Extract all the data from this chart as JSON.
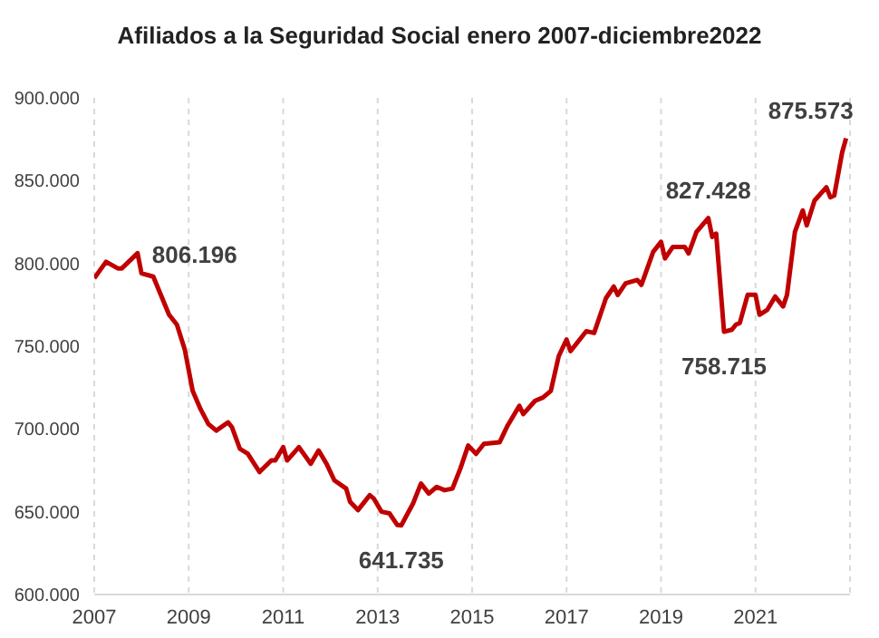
{
  "chart_data": {
    "type": "line",
    "title": "Afiliados a la Seguridad Social enero 2007-diciembre2022",
    "x": [
      "2007-01",
      "2007-04",
      "2007-07",
      "2007-08",
      "2007-12",
      "2008-01",
      "2008-04",
      "2008-08",
      "2008-10",
      "2008-12",
      "2009-02",
      "2009-04",
      "2009-06",
      "2009-08",
      "2009-11",
      "2009-12",
      "2010-02",
      "2010-04",
      "2010-07",
      "2010-10",
      "2010-11",
      "2011-01",
      "2011-02",
      "2011-05",
      "2011-08",
      "2011-10",
      "2011-12",
      "2012-02",
      "2012-05",
      "2012-06",
      "2012-08",
      "2012-11",
      "2012-12",
      "2013-02",
      "2013-04",
      "2013-06",
      "2013-07",
      "2013-10",
      "2013-12",
      "2014-02",
      "2014-04",
      "2014-06",
      "2014-08",
      "2014-10",
      "2014-12",
      "2015-02",
      "2015-04",
      "2015-08",
      "2015-10",
      "2016-01",
      "2016-02",
      "2016-05",
      "2016-07",
      "2016-09",
      "2016-11",
      "2017-01",
      "2017-02",
      "2017-06",
      "2017-08",
      "2017-11",
      "2018-01",
      "2018-02",
      "2018-04",
      "2018-07",
      "2018-08",
      "2018-11",
      "2019-01",
      "2019-02",
      "2019-04",
      "2019-07",
      "2019-08",
      "2019-10",
      "2020-01",
      "2020-02",
      "2020-03",
      "2020-05",
      "2020-07",
      "2020-08",
      "2020-09",
      "2020-11",
      "2021-01",
      "2021-02",
      "2021-04",
      "2021-06",
      "2021-08",
      "2021-09",
      "2021-11",
      "2022-01",
      "2022-02",
      "2022-04",
      "2022-07",
      "2022-08",
      "2022-09",
      "2022-11",
      "2022-12"
    ],
    "series": [
      {
        "color": "#c00000",
        "values": [
          791000,
          801000,
          797000,
          797000,
          806196,
          794000,
          792000,
          769000,
          763000,
          748000,
          723000,
          712000,
          703000,
          699000,
          704000,
          701000,
          688000,
          685000,
          674000,
          681000,
          681000,
          689000,
          681000,
          689000,
          679000,
          687000,
          679000,
          669000,
          664000,
          656000,
          651000,
          660000,
          658000,
          650000,
          649000,
          642000,
          641735,
          655000,
          667000,
          661000,
          665000,
          663000,
          664000,
          676000,
          690000,
          685000,
          691000,
          692000,
          702000,
          714000,
          709000,
          717000,
          719000,
          723000,
          744000,
          754000,
          747000,
          759000,
          758000,
          779000,
          786000,
          781000,
          788000,
          790000,
          787000,
          807000,
          813000,
          803000,
          810000,
          810000,
          806000,
          819000,
          827428,
          816000,
          818000,
          758715,
          760000,
          763000,
          764000,
          781000,
          781000,
          769000,
          772000,
          780000,
          774000,
          781000,
          819000,
          832000,
          823000,
          838000,
          846000,
          840000,
          841000,
          867000,
          875573
        ]
      }
    ],
    "xlim": [
      "2007-01",
      "2023-01"
    ],
    "xticks": [
      "2007",
      "2009",
      "2011",
      "2013",
      "2015",
      "2017",
      "2019",
      "2021"
    ],
    "ylim": [
      600000,
      900000
    ],
    "yticks": [
      {
        "value": 600000,
        "label": "600.000"
      },
      {
        "value": 650000,
        "label": "650.000"
      },
      {
        "value": 700000,
        "label": "700.000"
      },
      {
        "value": 750000,
        "label": "750.000"
      },
      {
        "value": 800000,
        "label": "800.000"
      },
      {
        "value": 850000,
        "label": "850.000"
      },
      {
        "value": 900000,
        "label": "900.000"
      }
    ],
    "grid": "x",
    "marker": "none",
    "line_style": "solid",
    "annotations": [
      {
        "text": "806.196",
        "x": "2007-12",
        "y": 806196
      },
      {
        "text": "641.735",
        "x": "2013-07",
        "y": 641735
      },
      {
        "text": "827.428",
        "x": "2020-01",
        "y": 827428
      },
      {
        "text": "758.715",
        "x": "2020-05",
        "y": 758715
      },
      {
        "text": "875.573",
        "x": "2022-12",
        "y": 875573
      }
    ]
  }
}
